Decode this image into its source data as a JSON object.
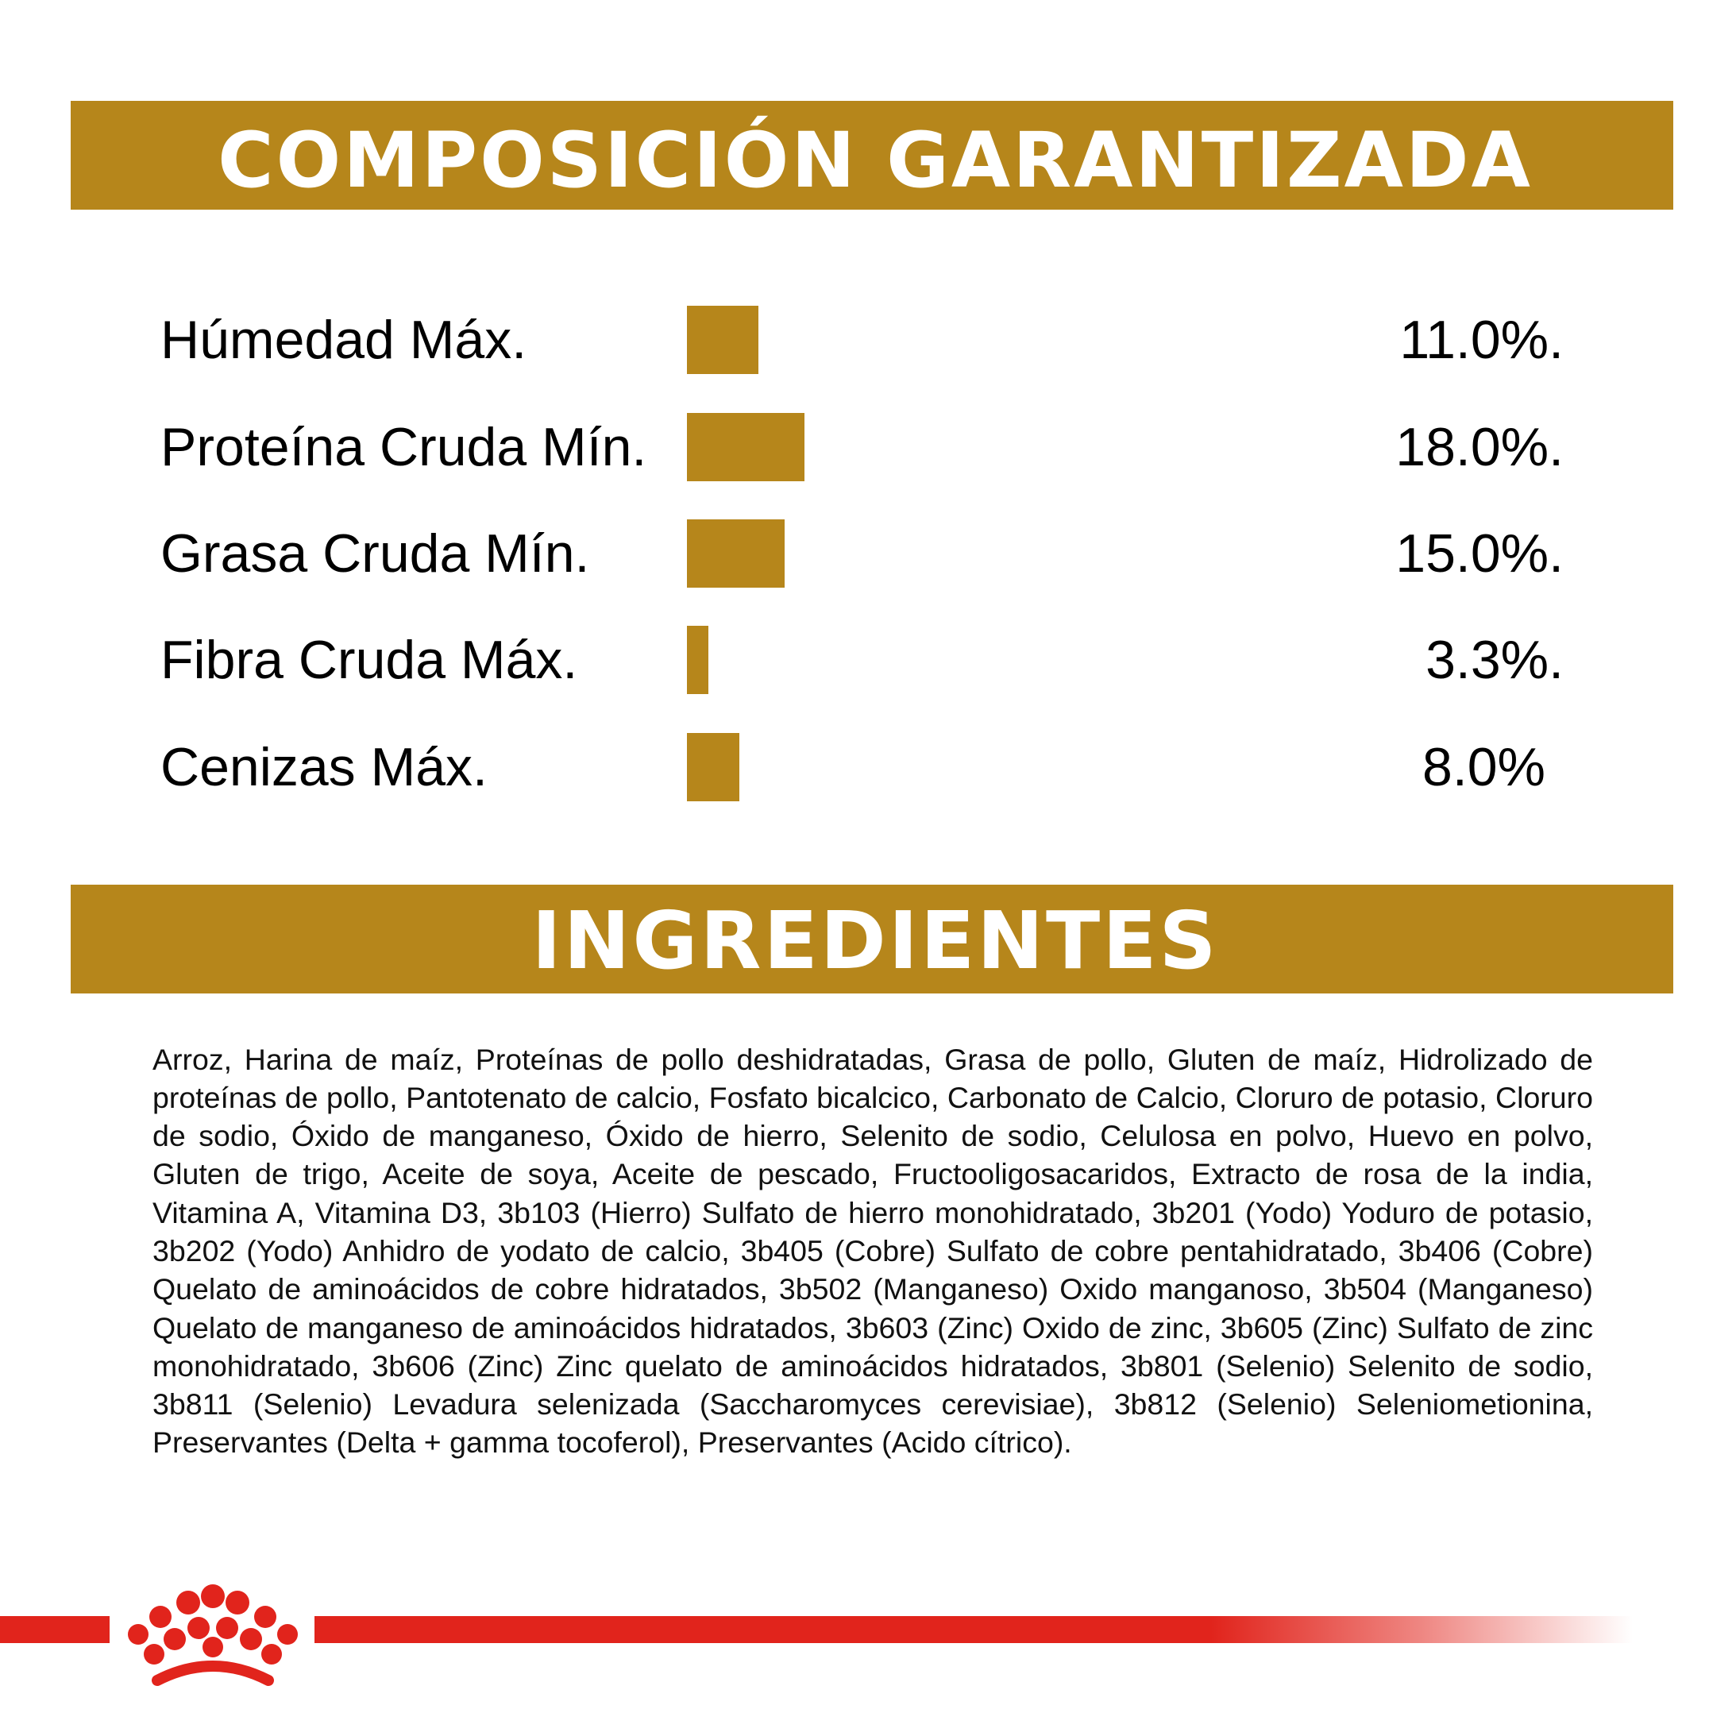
{
  "sections": {
    "composition_title": "COMPOSICIÓN GARANTIZADA",
    "ingredients_title": "INGREDIENTES"
  },
  "colors": {
    "gold": "#B6861B",
    "brand_red": "#E1241C"
  },
  "nutrients": [
    {
      "label": "Húmedad Máx.",
      "value": "11.0%.",
      "percent": 11.0
    },
    {
      "label": "Proteína Cruda Mín.",
      "value": "18.0%.",
      "percent": 18.0
    },
    {
      "label": "Grasa Cruda Mín.",
      "value": "15.0%.",
      "percent": 15.0
    },
    {
      "label": "Fibra Cruda Máx.",
      "value": "3.3%.",
      "percent": 3.3
    },
    {
      "label": "Cenizas Máx.",
      "value": "8.0%",
      "percent": 8.0
    }
  ],
  "ingredients_text": "Arroz, Harina de maíz, Proteínas de pollo deshidratadas, Grasa de pollo, Gluten de maíz, Hidrolizado de proteínas de pollo, Pantotenato de calcio, Fosfato bicalcico, Carbonato de Calcio, Cloruro de potasio, Cloruro de sodio, Óxido de manganeso, Óxido de hierro, Selenito de sodio, Celulosa en polvo, Huevo en polvo, Gluten de trigo, Aceite de soya, Aceite de pescado, Fructooligosacaridos, Extracto de rosa de la india, Vitamina A, Vitamina D3, 3b103 (Hierro) Sulfato de hierro monohidratado, 3b201 (Yodo) Yoduro de potasio, 3b202 (Yodo) Anhidro de yodato de calcio, 3b405 (Cobre) Sulfato de cobre pentahidratado, 3b406 (Cobre) Quelato de aminoácidos de cobre hidratados, 3b502 (Manganeso) Oxido manganoso, 3b504 (Manganeso) Quelato de manganeso de aminoácidos hidratados, 3b603 (Zinc) Oxido de zinc, 3b605 (Zinc) Sulfato de zinc monohidratado, 3b606 (Zinc)  Zinc quelato de aminoácidos hidratados, 3b801 (Selenio) Selenito de sodio, 3b811 (Selenio) Levadura selenizada (Saccharomyces cerevisiae), 3b812 (Selenio) Seleniometionina, Preservantes (Delta + gamma tocoferol), Preservantes (Acido cítrico)."
}
